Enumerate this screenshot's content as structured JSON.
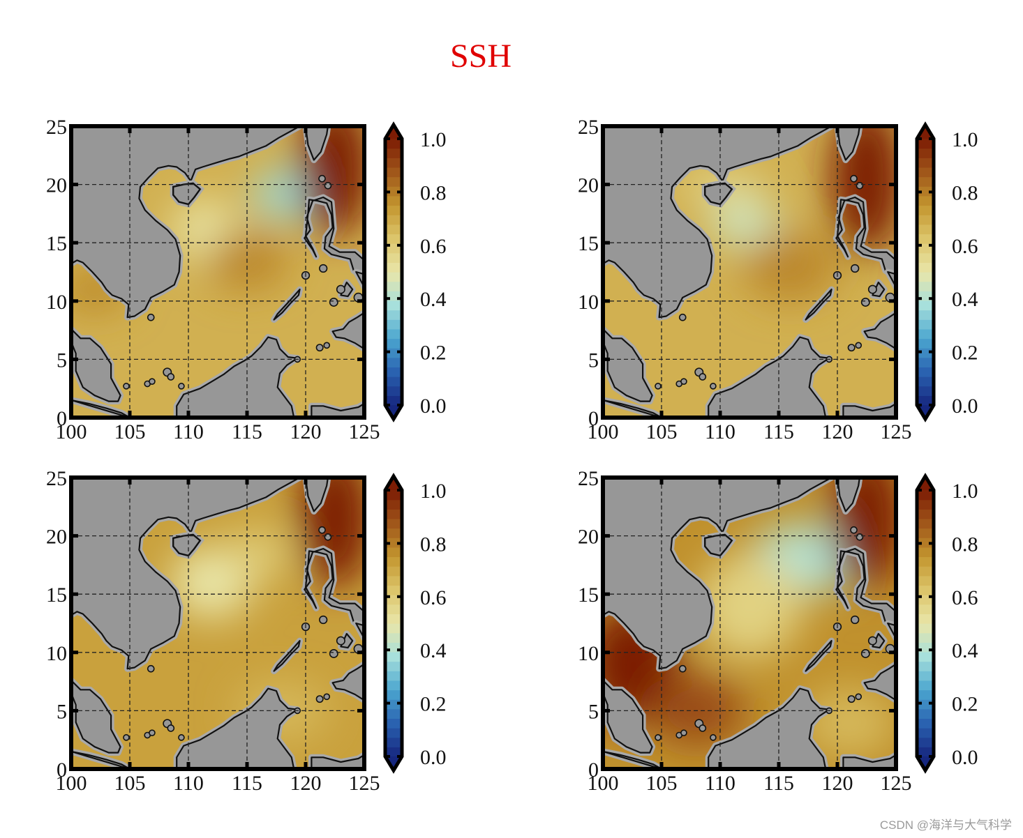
{
  "title": "SSH",
  "watermark": "CSDN @海洋与大气科学",
  "colors": {
    "title": "#e00000",
    "land": "#979797",
    "coast": "#111111",
    "shelf": "#a9a9a9",
    "cmap": [
      "#16277f",
      "#2a62b0",
      "#4ba6cf",
      "#a7e0dc",
      "#e9e6a9",
      "#dcc56b",
      "#c3962f",
      "#a0571a",
      "#7c1c04"
    ]
  },
  "map": {
    "lon_ticks": [
      "100",
      "105",
      "110",
      "115",
      "120",
      "125"
    ],
    "lat_ticks": [
      "0",
      "5",
      "10",
      "15",
      "20",
      "25"
    ],
    "lon_range": [
      100,
      125
    ],
    "lat_range": [
      0,
      25
    ],
    "grid": "dashed"
  },
  "colorbar": {
    "ticks": [
      "0.0",
      "0.2",
      "0.4",
      "0.6",
      "0.8",
      "1.0"
    ],
    "range": [
      0,
      1
    ],
    "extend": "both"
  },
  "panels": [
    {
      "background": 0.68,
      "features": [
        {
          "lon": 118.5,
          "lat": 19.2,
          "value": 0.36,
          "rx": 3.0,
          "ry": 2.0
        },
        {
          "lon": 111.5,
          "lat": 16.0,
          "value": 0.52,
          "rx": 3.0,
          "ry": 2.8
        },
        {
          "lon": 115.0,
          "lat": 13.5,
          "value": 0.78,
          "rx": 3.5,
          "ry": 2.5
        },
        {
          "lon": 102.0,
          "lat": 11.0,
          "value": 0.77,
          "rx": 3.0,
          "ry": 2.0
        },
        {
          "lon": 122.5,
          "lat": 21.5,
          "value": 1.0,
          "rx": 3.0,
          "ry": 6.0
        }
      ]
    },
    {
      "background": 0.68,
      "features": [
        {
          "lon": 112.0,
          "lat": 16.8,
          "value": 0.45,
          "rx": 3.0,
          "ry": 2.0
        },
        {
          "lon": 116.0,
          "lat": 13.0,
          "value": 0.78,
          "rx": 4.0,
          "ry": 3.0
        },
        {
          "lon": 110.0,
          "lat": 20.0,
          "value": 0.57,
          "rx": 4.0,
          "ry": 1.2
        },
        {
          "lon": 122.5,
          "lat": 20.5,
          "value": 1.0,
          "rx": 3.0,
          "ry": 6.5
        }
      ]
    },
    {
      "background": 0.72,
      "features": [
        {
          "lon": 112.0,
          "lat": 16.0,
          "value": 0.5,
          "rx": 3.5,
          "ry": 3.0
        },
        {
          "lon": 116.0,
          "lat": 18.5,
          "value": 0.6,
          "rx": 3.0,
          "ry": 2.0
        },
        {
          "lon": 118.0,
          "lat": 5.0,
          "value": 0.66,
          "rx": 4.0,
          "ry": 2.5
        },
        {
          "lon": 122.5,
          "lat": 21.5,
          "value": 1.0,
          "rx": 3.0,
          "ry": 6.0
        }
      ]
    },
    {
      "background": 0.76,
      "features": [
        {
          "lon": 117.0,
          "lat": 18.0,
          "value": 0.4,
          "rx": 4.5,
          "ry": 3.0
        },
        {
          "lon": 112.5,
          "lat": 14.0,
          "value": 0.58,
          "rx": 4.5,
          "ry": 4.5
        },
        {
          "lon": 102.5,
          "lat": 9.0,
          "value": 1.0,
          "rx": 4.0,
          "ry": 5.0
        },
        {
          "lon": 108.0,
          "lat": 5.0,
          "value": 0.9,
          "rx": 4.0,
          "ry": 3.0
        },
        {
          "lon": 121.0,
          "lat": 4.0,
          "value": 0.66,
          "rx": 4.0,
          "ry": 3.0
        },
        {
          "lon": 122.5,
          "lat": 21.5,
          "value": 1.0,
          "rx": 3.0,
          "ry": 6.0
        }
      ]
    }
  ]
}
